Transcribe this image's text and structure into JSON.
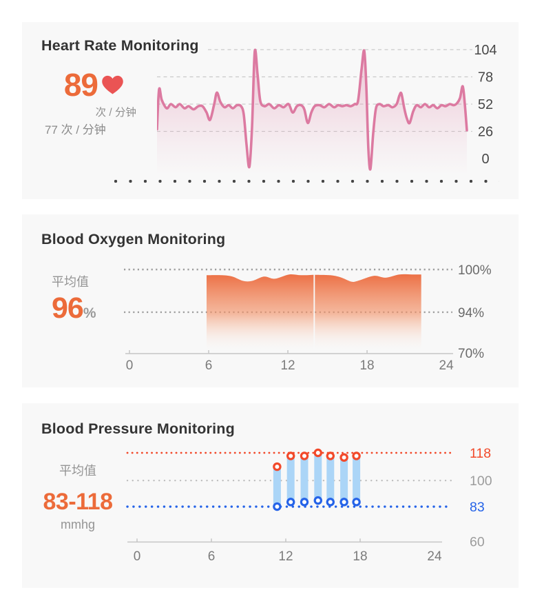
{
  "page": {
    "background": "#ffffff",
    "card_background": "#f8f8f8"
  },
  "cards": {
    "heart_rate": {
      "title": "Heart Rate Monitoring",
      "current_value": "89",
      "current_unit": "次 / 分钟",
      "average_text": "77 次 / 分钟",
      "accent_color": "#ec6b3a",
      "heart_color": "#ea5454"
    },
    "blood_oxygen": {
      "title": "Blood Oxygen Monitoring",
      "average_label": "平均值",
      "average_value": "96",
      "average_suffix": "%",
      "accent_color": "#ec6b3a"
    },
    "blood_pressure": {
      "title": "Blood Pressure Monitoring",
      "average_label": "平均值",
      "average_value": "83-118",
      "average_unit": "mmhg",
      "accent_color": "#ec6b3a"
    }
  },
  "chart_data": [
    {
      "id": "heart_rate",
      "type": "line",
      "title": "Heart Rate Monitoring",
      "ylabel_values": [
        104,
        78,
        52,
        26,
        0
      ],
      "ylim": [
        -12,
        110
      ],
      "xlim_hours": [
        0,
        24
      ],
      "line_color": "#dc7aa1",
      "grid": "dashed",
      "legend": "none",
      "points": [
        [
          0,
          28
        ],
        [
          0.16,
          66
        ],
        [
          0.37,
          56
        ],
        [
          0.75,
          48
        ],
        [
          1.07,
          52
        ],
        [
          1.44,
          49
        ],
        [
          1.76,
          52
        ],
        [
          2.13,
          48
        ],
        [
          2.45,
          50
        ],
        [
          2.83,
          47
        ],
        [
          3.2,
          50
        ],
        [
          3.52,
          50
        ],
        [
          3.84,
          44
        ],
        [
          4.11,
          37
        ],
        [
          4.43,
          52
        ],
        [
          4.64,
          63
        ],
        [
          4.91,
          54
        ],
        [
          5.23,
          49
        ],
        [
          5.55,
          51
        ],
        [
          5.87,
          48
        ],
        [
          6.19,
          51
        ],
        [
          6.51,
          50
        ],
        [
          6.72,
          42
        ],
        [
          6.93,
          14
        ],
        [
          7.15,
          -8
        ],
        [
          7.36,
          30
        ],
        [
          7.57,
          102
        ],
        [
          7.79,
          80
        ],
        [
          8.0,
          55
        ],
        [
          8.32,
          50
        ],
        [
          8.69,
          52
        ],
        [
          9.07,
          48
        ],
        [
          9.44,
          51
        ],
        [
          9.81,
          49
        ],
        [
          10.19,
          52
        ],
        [
          10.51,
          44
        ],
        [
          10.83,
          50
        ],
        [
          11.15,
          51
        ],
        [
          11.41,
          47
        ],
        [
          11.68,
          34
        ],
        [
          11.95,
          44
        ],
        [
          12.21,
          50
        ],
        [
          12.59,
          51
        ],
        [
          12.96,
          49
        ],
        [
          13.33,
          52
        ],
        [
          13.71,
          49
        ],
        [
          14.03,
          51
        ],
        [
          14.35,
          50
        ],
        [
          14.67,
          51
        ],
        [
          14.99,
          50
        ],
        [
          15.31,
          52
        ],
        [
          15.57,
          55
        ],
        [
          15.84,
          85
        ],
        [
          16.05,
          103
        ],
        [
          16.21,
          70
        ],
        [
          16.37,
          10
        ],
        [
          16.53,
          -10
        ],
        [
          16.75,
          25
        ],
        [
          16.96,
          48
        ],
        [
          17.23,
          52
        ],
        [
          17.55,
          50
        ],
        [
          17.92,
          51
        ],
        [
          18.24,
          49
        ],
        [
          18.56,
          52
        ],
        [
          18.77,
          60
        ],
        [
          18.93,
          62
        ],
        [
          19.15,
          48
        ],
        [
          19.36,
          38
        ],
        [
          19.57,
          34
        ],
        [
          19.84,
          45
        ],
        [
          20.11,
          51
        ],
        [
          20.43,
          49
        ],
        [
          20.75,
          52
        ],
        [
          21.07,
          49
        ],
        [
          21.39,
          51
        ],
        [
          21.71,
          48
        ],
        [
          22.03,
          51
        ],
        [
          22.35,
          50
        ],
        [
          22.67,
          52
        ],
        [
          22.99,
          51
        ],
        [
          23.25,
          53
        ],
        [
          23.47,
          58
        ],
        [
          23.68,
          69
        ],
        [
          23.84,
          52
        ],
        [
          24,
          27
        ]
      ]
    },
    {
      "id": "blood_oxygen",
      "type": "area",
      "title": "Blood Oxygen Monitoring",
      "xlabels": [
        "0",
        "6",
        "12",
        "18",
        "24"
      ],
      "xlim": [
        0,
        24
      ],
      "gridlines": [
        {
          "value": 100,
          "label": "100%"
        },
        {
          "value": 94,
          "label": "94%"
        }
      ],
      "baseline": {
        "value": 70,
        "label": "70%"
      },
      "fill_color": "#ec7045",
      "segments": [
        [
          [
            5.84,
            99.2
          ],
          [
            7.0,
            99.2
          ],
          [
            7.8,
            99.0
          ],
          [
            8.6,
            98.4
          ],
          [
            9.3,
            98.4
          ],
          [
            10.2,
            99.0
          ],
          [
            11.0,
            98.7
          ],
          [
            12.1,
            99.3
          ],
          [
            13.0,
            99.2
          ],
          [
            13.95,
            99.25
          ]
        ],
        [
          [
            14.05,
            99.25
          ],
          [
            15.2,
            99.2
          ],
          [
            16.0,
            98.9
          ],
          [
            16.8,
            98.3
          ],
          [
            17.3,
            98.4
          ],
          [
            18.5,
            99.1
          ],
          [
            19.4,
            98.85
          ],
          [
            20.45,
            99.3
          ],
          [
            21.4,
            99.3
          ],
          [
            22.1,
            99.3
          ]
        ]
      ]
    },
    {
      "id": "blood_pressure",
      "type": "range_bar",
      "title": "Blood Pressure Monitoring",
      "xlabels": [
        "0",
        "6",
        "12",
        "18",
        "24"
      ],
      "xlim": [
        0,
        24
      ],
      "ylim": [
        60,
        118
      ],
      "reference_lines": [
        {
          "value": 118,
          "label": "118",
          "color": "#f2492a",
          "label_color": "#f2492a"
        },
        {
          "value": 100,
          "label": "100",
          "color": "#bdbdbd",
          "label_color": "#9c9c9c"
        },
        {
          "value": 83,
          "label": "83",
          "color": "#2563e8",
          "label_color": "#2563e8"
        }
      ],
      "baseline": {
        "value": 60,
        "label": "60",
        "label_color": "#9c9c9c"
      },
      "bar_color": "#abd5f7",
      "systolic_color": "#f2492a",
      "diastolic_color": "#2563e8",
      "bars": [
        {
          "hour": 11.3,
          "systolic": 109,
          "diastolic": 83
        },
        {
          "hour": 12.4,
          "systolic": 116,
          "diastolic": 86
        },
        {
          "hour": 13.5,
          "systolic": 116,
          "diastolic": 86
        },
        {
          "hour": 14.6,
          "systolic": 118,
          "diastolic": 87
        },
        {
          "hour": 15.6,
          "systolic": 116,
          "diastolic": 86
        },
        {
          "hour": 16.7,
          "systolic": 115,
          "diastolic": 86
        },
        {
          "hour": 17.7,
          "systolic": 116,
          "diastolic": 86
        }
      ]
    }
  ]
}
